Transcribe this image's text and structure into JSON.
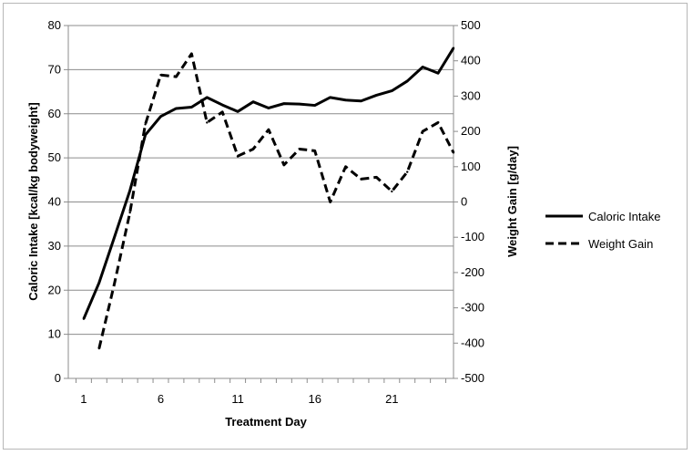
{
  "chart_data": {
    "type": "line",
    "xlabel": "Treatment Day",
    "ylabel_left": "Caloric Intake [kcal/kg bodyweight]",
    "ylabel_right": "Weight Gain [g/day]",
    "xticks": [
      1,
      6,
      11,
      16,
      21
    ],
    "xlim": [
      0,
      25
    ],
    "ylim_left": [
      0,
      80
    ],
    "yticks_left": [
      0,
      10,
      20,
      30,
      40,
      50,
      60,
      70,
      80
    ],
    "ylim_right": [
      -500,
      500
    ],
    "yticks_right": [
      -500,
      -400,
      -300,
      -200,
      -100,
      0,
      100,
      200,
      300,
      400,
      500
    ],
    "grid": "horizontal",
    "legend_position": "right",
    "series": [
      {
        "name": "Caloric Intake",
        "axis": "left",
        "style": "solid",
        "color": "#000000",
        "x": [
          1,
          2,
          3,
          4,
          5,
          6,
          7,
          8,
          9,
          10,
          11,
          12,
          13,
          14,
          15,
          16,
          17,
          18,
          19,
          20,
          21,
          22,
          23,
          24,
          25
        ],
        "y": [
          13.5,
          21.7,
          32.1,
          42.6,
          55.2,
          59.4,
          61.2,
          61.5,
          63.7,
          62,
          60.5,
          62.7,
          61.3,
          62.3,
          62.2,
          61.9,
          63.7,
          63.1,
          62.9,
          64.2,
          65.2,
          67.4,
          70.6,
          69.2,
          74.9
        ]
      },
      {
        "name": "Weight Gain",
        "axis": "right",
        "style": "dashed",
        "color": "#000000",
        "x": [
          2,
          3,
          4,
          5,
          6,
          7,
          8,
          9,
          10,
          11,
          12,
          13,
          14,
          15,
          16,
          17,
          18,
          19,
          20,
          21,
          22,
          23,
          24,
          25
        ],
        "y": [
          -415,
          -230,
          -30,
          220,
          360,
          355,
          420,
          225,
          255,
          130,
          150,
          205,
          105,
          150,
          145,
          0,
          100,
          65,
          70,
          30,
          85,
          200,
          225,
          140
        ]
      }
    ]
  }
}
